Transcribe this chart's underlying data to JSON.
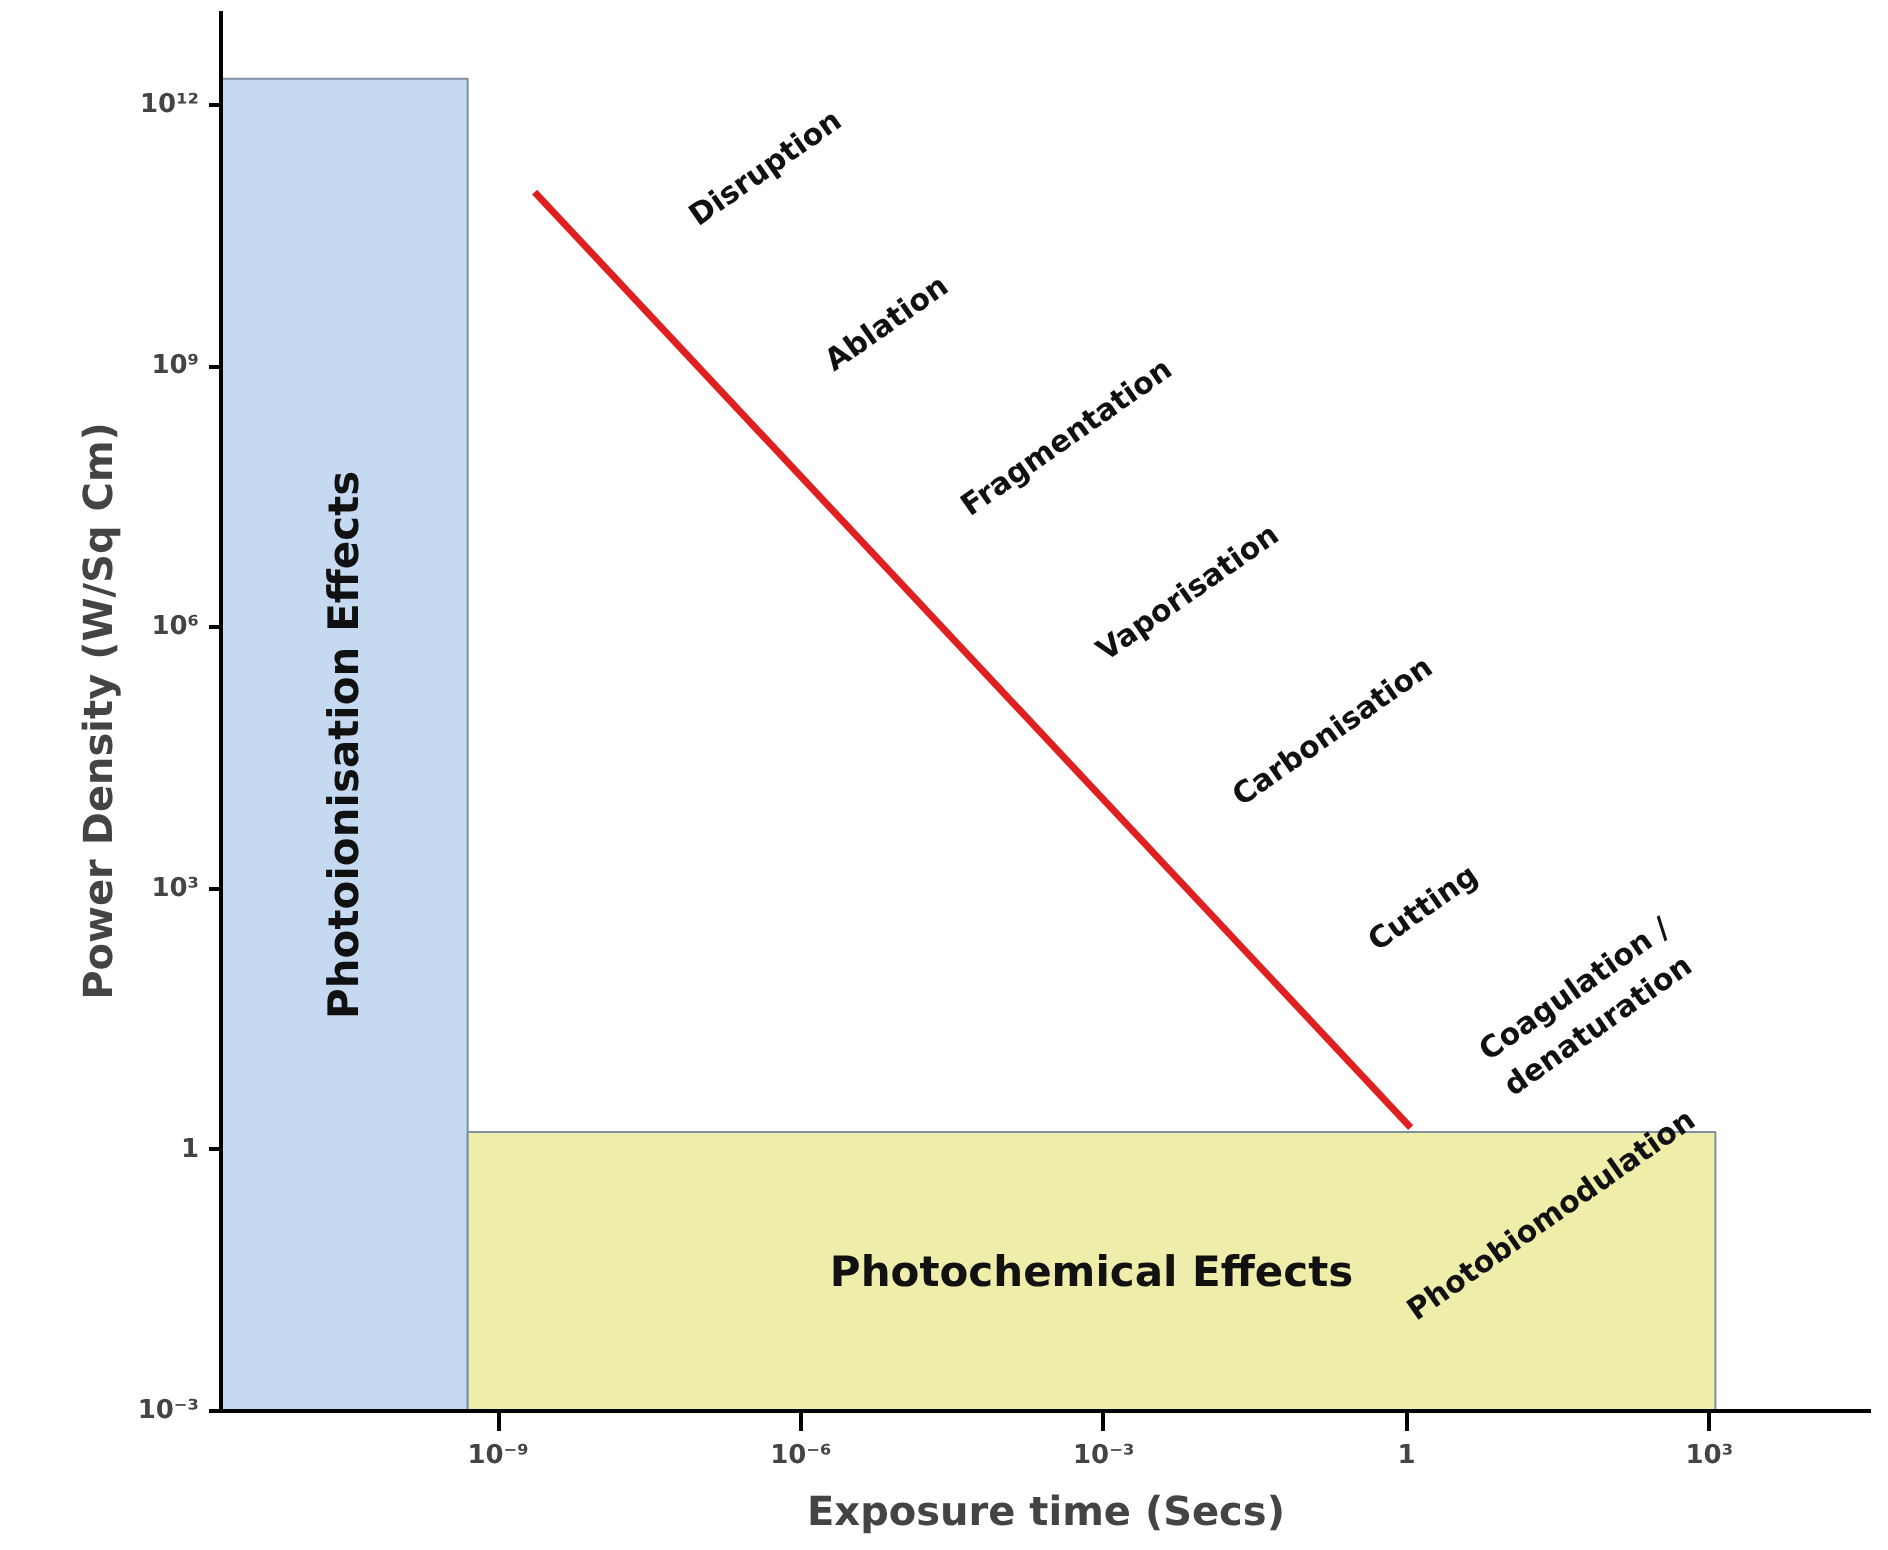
{
  "chart_data": {
    "type": "line",
    "xlabel": "Exposure time (Secs)",
    "ylabel": "Power Density (W/Sq Cm)",
    "log": "xy",
    "xlim": [
      1.8e-12,
      40000.0
    ],
    "ylim": [
      0.001,
      12000000000000.0
    ],
    "xticks": [
      {
        "value": 1e-09,
        "label": "10⁻⁹"
      },
      {
        "value": 1e-06,
        "label": "10⁻⁶"
      },
      {
        "value": 0.001,
        "label": "10⁻³"
      },
      1,
      {
        "value": 1000,
        "label": "10³"
      }
    ],
    "yticks": [
      {
        "value": 0.001,
        "label": "10⁻³"
      },
      1,
      {
        "value": 1000,
        "label": "10³"
      },
      {
        "value": 1000000.0,
        "label": "10⁶"
      },
      {
        "value": 1000000000.0,
        "label": "10⁹"
      },
      {
        "value": 1000000000000.0,
        "label": "10¹²"
      }
    ],
    "series": [
      {
        "type": "area",
        "name": "Photoionisation Effects",
        "color": "#c5daf0",
        "x": [
          1.8e-12,
          5e-10
        ],
        "values": [
          2000000000000.0,
          2000000000000.0
        ]
      },
      {
        "type": "area",
        "name": "Photochemical Effects",
        "color": "#eeeeaa",
        "x": [
          5e-10,
          1150
        ],
        "values": [
          1.6,
          1.6
        ]
      },
      {
        "color": "#e02020",
        "x": [
          2.3e-09,
          1.1
        ],
        "values": [
          100000000000.0,
          1.8
        ]
      }
    ],
    "annotations": [
      "Disruption",
      "Ablation",
      "Fragmentation",
      "Vaporisation",
      "Carbonisation",
      "Cutting",
      "Coagulation /\ndenaturation",
      "Photobiomodulation"
    ],
    "grid": false
  }
}
